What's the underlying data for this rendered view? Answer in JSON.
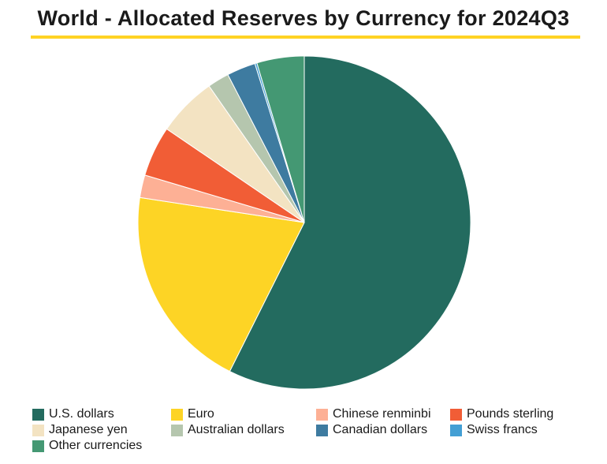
{
  "chart_data": {
    "type": "pie",
    "title": "World - Allocated Reserves by Currency for 2024Q3",
    "title_rule_color": "#FFD324",
    "start_angle_deg": 0,
    "direction": "clockwise",
    "slices": [
      {
        "label": "U.S. dollars",
        "value": 57.4,
        "color": "#236B5F"
      },
      {
        "label": "Euro",
        "value": 20.0,
        "color": "#FDD425"
      },
      {
        "label": "Chinese renminbi",
        "value": 2.2,
        "color": "#FDB095"
      },
      {
        "label": "Pounds sterling",
        "value": 4.9,
        "color": "#F15D36"
      },
      {
        "label": "Japanese yen",
        "value": 5.8,
        "color": "#F3E3C2"
      },
      {
        "label": "Australian dollars",
        "value": 2.1,
        "color": "#B5C6AE"
      },
      {
        "label": "Canadian dollars",
        "value": 2.8,
        "color": "#3E7BA0"
      },
      {
        "label": "Swiss francs",
        "value": 0.2,
        "color": "#439FD4"
      },
      {
        "label": "Other currencies",
        "value": 4.6,
        "color": "#449873"
      }
    ],
    "legend_position": "bottom"
  }
}
